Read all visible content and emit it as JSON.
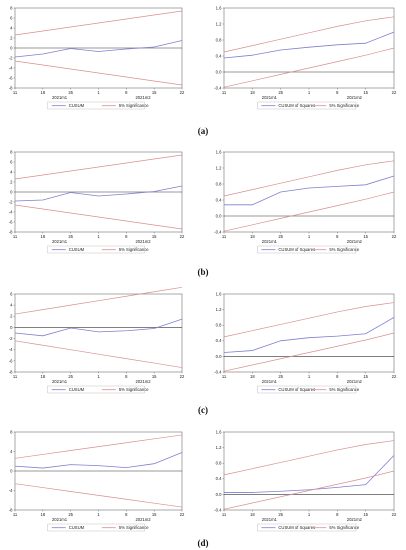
{
  "colors": {
    "series": "#7f7fd0",
    "band": "#d98f8f",
    "zero": "#333333",
    "axis": "#555555"
  },
  "panel_labels": [
    "(a)",
    "(b)",
    "(c)",
    "(d)"
  ],
  "chart_data": [
    {
      "type": "line",
      "id": "a-cusum",
      "x_ticks": [
        "11",
        "18",
        "25",
        "1",
        "8",
        "15",
        "22"
      ],
      "x_sublabels": [
        "2021m1",
        "2021m2"
      ],
      "y_ticks": [
        "8",
        "6",
        "4",
        "2",
        "0",
        "-2",
        "-4",
        "-6",
        "-8"
      ],
      "ylim": [
        -8,
        8
      ],
      "x": [
        0,
        1,
        2,
        3,
        4,
        5,
        6
      ],
      "series": [
        {
          "name": "CUSUM",
          "values": [
            -1.8,
            -1.2,
            -0.1,
            -0.7,
            -0.2,
            0.2,
            1.5
          ]
        },
        {
          "name": "5% Significance",
          "values": [
            2.6,
            3.4,
            4.2,
            5.0,
            5.8,
            6.6,
            7.4
          ]
        },
        {
          "name": "",
          "values": [
            -2.6,
            -3.4,
            -4.2,
            -5.0,
            -5.8,
            -6.6,
            -7.4
          ]
        }
      ],
      "zero_line": 0,
      "legend": [
        "CUSUM",
        "5% Significance"
      ]
    },
    {
      "type": "line",
      "id": "a-cusumsq",
      "x_ticks": [
        "11",
        "18",
        "25",
        "1",
        "8",
        "15",
        "22"
      ],
      "x_sublabels": [
        "2021m1",
        "2021m2"
      ],
      "y_ticks": [
        "1.6",
        "1.2",
        "0.8",
        "0.4",
        "0.0",
        "-0.4"
      ],
      "ylim": [
        -0.4,
        1.6
      ],
      "x": [
        0,
        1,
        2,
        3,
        4,
        5,
        6
      ],
      "series": [
        {
          "name": "CUSUM of Squares",
          "values": [
            0.35,
            0.42,
            0.55,
            0.62,
            0.68,
            0.72,
            1.0
          ]
        },
        {
          "name": "5% Significance",
          "values": [
            0.5,
            0.66,
            0.82,
            0.98,
            1.14,
            1.28,
            1.38
          ]
        },
        {
          "name": "",
          "values": [
            -0.38,
            -0.22,
            -0.06,
            0.1,
            0.26,
            0.42,
            0.6
          ]
        }
      ],
      "zero_line": 0,
      "legend": [
        "CUSUM of Squares",
        "5% Significance"
      ]
    },
    {
      "type": "line",
      "id": "b-cusum",
      "x_ticks": [
        "11",
        "18",
        "25",
        "1",
        "8",
        "15",
        "22"
      ],
      "x_sublabels": [
        "2021m1",
        "2021m2"
      ],
      "y_ticks": [
        "8",
        "6",
        "4",
        "2",
        "0",
        "-2",
        "-4",
        "-6",
        "-8"
      ],
      "ylim": [
        -8,
        8
      ],
      "x": [
        0,
        1,
        2,
        3,
        4,
        5,
        6
      ],
      "series": [
        {
          "name": "CUSUM",
          "values": [
            -1.8,
            -1.6,
            -0.1,
            -0.8,
            -0.4,
            0.1,
            1.2
          ]
        },
        {
          "name": "5% Significance",
          "values": [
            2.6,
            3.4,
            4.2,
            5.0,
            5.8,
            6.6,
            7.4
          ]
        },
        {
          "name": "",
          "values": [
            -2.6,
            -3.4,
            -4.2,
            -5.0,
            -5.8,
            -6.6,
            -7.4
          ]
        }
      ],
      "zero_line": 0,
      "legend": [
        "CUSUM",
        "5% Significance"
      ]
    },
    {
      "type": "line",
      "id": "b-cusumsq",
      "x_ticks": [
        "11",
        "18",
        "25",
        "1",
        "8",
        "15",
        "22"
      ],
      "x_sublabels": [
        "2021m1",
        "2021m2"
      ],
      "y_ticks": [
        "1.6",
        "1.2",
        "0.8",
        "0.4",
        "0.0",
        "-0.4"
      ],
      "ylim": [
        -0.4,
        1.6
      ],
      "x": [
        0,
        1,
        2,
        3,
        4,
        5,
        6
      ],
      "series": [
        {
          "name": "CUSUM of Squares",
          "values": [
            0.28,
            0.28,
            0.6,
            0.7,
            0.74,
            0.78,
            1.0
          ]
        },
        {
          "name": "5% Significance",
          "values": [
            0.5,
            0.66,
            0.82,
            0.98,
            1.14,
            1.28,
            1.38
          ]
        },
        {
          "name": "",
          "values": [
            -0.38,
            -0.22,
            -0.06,
            0.1,
            0.26,
            0.42,
            0.6
          ]
        }
      ],
      "zero_line": 0,
      "legend": [
        "CUSUM of Squares",
        "5% Significance"
      ]
    },
    {
      "type": "line",
      "id": "c-cusum",
      "x_ticks": [
        "11",
        "18",
        "25",
        "1",
        "8",
        "15",
        "22"
      ],
      "x_sublabels": [
        "2021m1",
        "2021m2"
      ],
      "y_ticks": [
        "6",
        "4",
        "2",
        "0",
        "-2",
        "-4",
        "-6",
        "-8"
      ],
      "ylim": [
        -8,
        6
      ],
      "x": [
        0,
        1,
        2,
        3,
        4,
        5,
        6
      ],
      "series": [
        {
          "name": "CUSUM",
          "values": [
            -1.0,
            -1.5,
            -0.1,
            -0.8,
            -0.6,
            -0.2,
            1.5
          ]
        },
        {
          "name": "5% Significance",
          "values": [
            2.4,
            3.2,
            4.0,
            4.8,
            5.6,
            6.4,
            7.2
          ]
        },
        {
          "name": "",
          "values": [
            -2.4,
            -3.2,
            -4.0,
            -4.8,
            -5.6,
            -6.4,
            -7.2
          ]
        }
      ],
      "zero_line": 0,
      "legend": [
        "CUSUM",
        "5% Significance"
      ]
    },
    {
      "type": "line",
      "id": "c-cusumsq",
      "x_ticks": [
        "11",
        "18",
        "25",
        "1",
        "8",
        "15",
        "22"
      ],
      "x_sublabels": [
        "2021m1",
        "2021m2"
      ],
      "y_ticks": [
        "1.6",
        "1.2",
        "0.8",
        "0.4",
        "0.0",
        "-0.4"
      ],
      "ylim": [
        -0.4,
        1.6
      ],
      "x": [
        0,
        1,
        2,
        3,
        4,
        5,
        6
      ],
      "series": [
        {
          "name": "CUSUM of Squares",
          "values": [
            0.1,
            0.15,
            0.4,
            0.48,
            0.52,
            0.58,
            1.0
          ]
        },
        {
          "name": "5% Significance",
          "values": [
            0.5,
            0.66,
            0.82,
            0.98,
            1.14,
            1.28,
            1.38
          ]
        },
        {
          "name": "",
          "values": [
            -0.38,
            -0.22,
            -0.06,
            0.1,
            0.26,
            0.42,
            0.6
          ]
        }
      ],
      "zero_line": 0,
      "legend": [
        "CUSUM of Squares",
        "5% Significance"
      ]
    },
    {
      "type": "line",
      "id": "d-cusum",
      "x_ticks": [
        "11",
        "18",
        "25",
        "1",
        "8",
        "15",
        "22"
      ],
      "x_sublabels": [
        "2021m1",
        "2021m2"
      ],
      "y_ticks": [
        "8",
        "4",
        "0",
        "-4",
        "-8"
      ],
      "ylim": [
        -8,
        8
      ],
      "x": [
        0,
        1,
        2,
        3,
        4,
        5,
        6
      ],
      "series": [
        {
          "name": "CUSUM",
          "values": [
            1.0,
            0.6,
            1.3,
            1.1,
            0.7,
            1.5,
            3.8
          ]
        },
        {
          "name": "5% Significance",
          "values": [
            2.6,
            3.4,
            4.2,
            5.0,
            5.8,
            6.6,
            7.4
          ]
        },
        {
          "name": "",
          "values": [
            -2.6,
            -3.4,
            -4.2,
            -5.0,
            -5.8,
            -6.6,
            -7.4
          ]
        }
      ],
      "zero_line": 0,
      "legend": [
        "CUSUM",
        "5% Significance"
      ]
    },
    {
      "type": "line",
      "id": "d-cusumsq",
      "x_ticks": [
        "11",
        "18",
        "25",
        "1",
        "8",
        "15",
        "22"
      ],
      "x_sublabels": [
        "2021m1",
        "2021m2"
      ],
      "y_ticks": [
        "1.6",
        "1.2",
        "0.8",
        "0.4",
        "0.0",
        "-0.4"
      ],
      "ylim": [
        -0.4,
        1.6
      ],
      "x": [
        0,
        1,
        2,
        3,
        4,
        5,
        6
      ],
      "series": [
        {
          "name": "CUSUM of Squares",
          "values": [
            0.05,
            0.05,
            0.08,
            0.12,
            0.18,
            0.25,
            1.0
          ]
        },
        {
          "name": "5% Significance",
          "values": [
            0.5,
            0.66,
            0.82,
            0.98,
            1.14,
            1.28,
            1.38
          ]
        },
        {
          "name": "",
          "values": [
            -0.38,
            -0.22,
            -0.06,
            0.1,
            0.26,
            0.42,
            0.6
          ]
        }
      ],
      "zero_line": 0,
      "legend": [
        "CUSUM of Squares",
        "5% Significance"
      ]
    }
  ]
}
